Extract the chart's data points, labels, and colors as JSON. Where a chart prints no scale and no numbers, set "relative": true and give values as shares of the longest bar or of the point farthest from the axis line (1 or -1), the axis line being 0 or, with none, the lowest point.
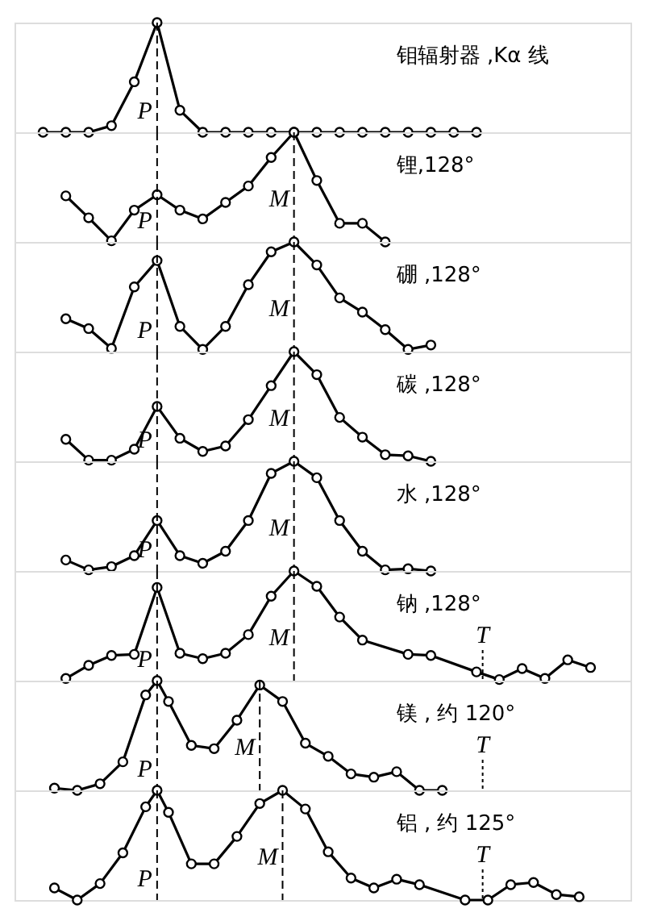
{
  "chart_data": [
    {
      "type": "line",
      "relative": true,
      "tick_labels": false,
      "marker": "circle",
      "line_style": "solid",
      "annotations": [
        "钼辐射器 ,Kα 线",
        "P"
      ],
      "categories": [
        null,
        null,
        null,
        null,
        null,
        null,
        null,
        null,
        null,
        null,
        null,
        null,
        null,
        null,
        null,
        null,
        null,
        null,
        null,
        null,
        null,
        null,
        null,
        null,
        null,
        null,
        null,
        null,
        null,
        null,
        null,
        null,
        null,
        null,
        null,
        null,
        null,
        null,
        null,
        null,
        null,
        null,
        null,
        null,
        null,
        null,
        null,
        null,
        null,
        null,
        null,
        null,
        null,
        null
      ],
      "series": [
        {
          "color": "#000000",
          "values": [
            null,
            null,
            0,
            null,
            0,
            null,
            0,
            null,
            0.06,
            null,
            0.46,
            null,
            1,
            null,
            0.2,
            null,
            0,
            null,
            0,
            null,
            0,
            null,
            0,
            null,
            0,
            null,
            0,
            null,
            0,
            null,
            0,
            null,
            0,
            null,
            0,
            null,
            0,
            null,
            0,
            null,
            0,
            null,
            null,
            null,
            null,
            null,
            null,
            null,
            null,
            null,
            null,
            null,
            null,
            null
          ]
        }
      ]
    },
    {
      "type": "line",
      "relative": true,
      "tick_labels": false,
      "marker": "circle",
      "line_style": "solid",
      "annotations": [
        "锂,128°",
        "P",
        "M"
      ],
      "categories": [
        null,
        null,
        null,
        null,
        null,
        null,
        null,
        null,
        null,
        null,
        null,
        null,
        null,
        null,
        null,
        null,
        null,
        null,
        null,
        null,
        null,
        null,
        null,
        null,
        null,
        null,
        null,
        null,
        null,
        null,
        null,
        null,
        null,
        null,
        null,
        null,
        null,
        null,
        null,
        null,
        null,
        null,
        null,
        null,
        null,
        null,
        null,
        null,
        null,
        null,
        null,
        null,
        null,
        null
      ],
      "series": [
        {
          "color": "#000000",
          "values": [
            null,
            null,
            null,
            null,
            0.42,
            null,
            0.22,
            null,
            0.01,
            null,
            0.29,
            null,
            0.43,
            null,
            0.29,
            null,
            0.21,
            null,
            0.36,
            null,
            0.51,
            null,
            0.77,
            null,
            1,
            null,
            0.56,
            null,
            0.17,
            null,
            0.17,
            null,
            0,
            null,
            null,
            null,
            null,
            null,
            null,
            null,
            null,
            null,
            null,
            null,
            null,
            null,
            null,
            null,
            null,
            null,
            null,
            null,
            null,
            null
          ]
        }
      ]
    },
    {
      "type": "line",
      "relative": true,
      "tick_labels": false,
      "marker": "circle",
      "line_style": "solid",
      "annotations": [
        "硼 ,128°",
        "P",
        "M"
      ],
      "categories": [
        null,
        null,
        null,
        null,
        null,
        null,
        null,
        null,
        null,
        null,
        null,
        null,
        null,
        null,
        null,
        null,
        null,
        null,
        null,
        null,
        null,
        null,
        null,
        null,
        null,
        null,
        null,
        null,
        null,
        null,
        null,
        null,
        null,
        null,
        null,
        null,
        null,
        null,
        null,
        null,
        null,
        null,
        null,
        null,
        null,
        null,
        null,
        null,
        null,
        null,
        null,
        null,
        null,
        null
      ],
      "series": [
        {
          "color": "#000000",
          "values": [
            null,
            null,
            null,
            null,
            0.3,
            null,
            0.21,
            null,
            0.03,
            null,
            0.59,
            null,
            0.83,
            null,
            0.23,
            null,
            0.02,
            null,
            0.23,
            null,
            0.61,
            null,
            0.91,
            null,
            1,
            null,
            0.79,
            null,
            0.49,
            null,
            0.36,
            null,
            0.2,
            null,
            0.02,
            null,
            0.06,
            null,
            null,
            null,
            null,
            null,
            null,
            null,
            null,
            null,
            null,
            null,
            null,
            null,
            null,
            null,
            null,
            null
          ]
        }
      ]
    },
    {
      "type": "line",
      "relative": true,
      "tick_labels": false,
      "marker": "circle",
      "line_style": "solid",
      "annotations": [
        "碳 ,128°",
        "P",
        "M"
      ],
      "categories": [
        null,
        null,
        null,
        null,
        null,
        null,
        null,
        null,
        null,
        null,
        null,
        null,
        null,
        null,
        null,
        null,
        null,
        null,
        null,
        null,
        null,
        null,
        null,
        null,
        null,
        null,
        null,
        null,
        null,
        null,
        null,
        null,
        null,
        null,
        null,
        null,
        null,
        null,
        null,
        null,
        null,
        null,
        null,
        null,
        null,
        null,
        null,
        null,
        null,
        null,
        null,
        null,
        null,
        null
      ],
      "series": [
        {
          "color": "#000000",
          "values": [
            null,
            null,
            null,
            null,
            0.2,
            null,
            0.01,
            null,
            0.01,
            null,
            0.11,
            null,
            0.5,
            null,
            0.21,
            null,
            0.09,
            null,
            0.14,
            null,
            0.38,
            null,
            0.69,
            null,
            1,
            null,
            0.79,
            null,
            0.4,
            null,
            0.22,
            null,
            0.06,
            null,
            0.05,
            null,
            0,
            null,
            null,
            null,
            null,
            null,
            null,
            null,
            null,
            null,
            null,
            null,
            null,
            null,
            null,
            null,
            null,
            null
          ]
        }
      ]
    },
    {
      "type": "line",
      "relative": true,
      "tick_labels": false,
      "marker": "circle",
      "line_style": "solid",
      "annotations": [
        "水 ,128°",
        "P",
        "M"
      ],
      "categories": [
        null,
        null,
        null,
        null,
        null,
        null,
        null,
        null,
        null,
        null,
        null,
        null,
        null,
        null,
        null,
        null,
        null,
        null,
        null,
        null,
        null,
        null,
        null,
        null,
        null,
        null,
        null,
        null,
        null,
        null,
        null,
        null,
        null,
        null,
        null,
        null,
        null,
        null,
        null,
        null,
        null,
        null,
        null,
        null,
        null,
        null,
        null,
        null,
        null,
        null,
        null,
        null,
        null,
        null
      ],
      "series": [
        {
          "color": "#000000",
          "values": [
            null,
            null,
            null,
            null,
            0.1,
            null,
            0.01,
            null,
            0.04,
            null,
            0.14,
            null,
            0.46,
            null,
            0.14,
            null,
            0.07,
            null,
            0.18,
            null,
            0.46,
            null,
            0.89,
            null,
            1,
            null,
            0.85,
            null,
            0.46,
            null,
            0.18,
            null,
            0.01,
            null,
            0.02,
            null,
            0,
            null,
            null,
            null,
            null,
            null,
            null,
            null,
            null,
            null,
            null,
            null,
            null,
            null,
            null,
            null,
            null,
            null
          ]
        }
      ]
    },
    {
      "type": "line",
      "relative": true,
      "tick_labels": false,
      "marker": "circle",
      "line_style": "solid",
      "annotations": [
        "钠 ,128°",
        "P",
        "M",
        "T"
      ],
      "categories": [
        null,
        null,
        null,
        null,
        null,
        null,
        null,
        null,
        null,
        null,
        null,
        null,
        null,
        null,
        null,
        null,
        null,
        null,
        null,
        null,
        null,
        null,
        null,
        null,
        null,
        null,
        null,
        null,
        null,
        null,
        null,
        null,
        null,
        null,
        null,
        null,
        null,
        null,
        null,
        null,
        null,
        null,
        null,
        null,
        null,
        null,
        null,
        null,
        null,
        null,
        null,
        null,
        null,
        null
      ],
      "series": [
        {
          "color": "#000000",
          "values": [
            null,
            null,
            null,
            null,
            0.02,
            null,
            0.14,
            null,
            0.23,
            null,
            0.24,
            null,
            0.85,
            null,
            0.25,
            null,
            0.2,
            null,
            0.25,
            null,
            0.42,
            null,
            0.77,
            null,
            1,
            null,
            0.86,
            null,
            0.58,
            null,
            0.37,
            null,
            null,
            null,
            0.24,
            null,
            0.23,
            null,
            null,
            null,
            0.08,
            null,
            0.01,
            null,
            0.11,
            null,
            0.02,
            null,
            0.19,
            null,
            0.12,
            null,
            null,
            null
          ]
        }
      ]
    },
    {
      "type": "line",
      "relative": true,
      "tick_labels": false,
      "marker": "circle",
      "line_style": "solid",
      "annotations": [
        "镁 , 约 120°",
        "P",
        "M",
        "T"
      ],
      "categories": [
        null,
        null,
        null,
        null,
        null,
        null,
        null,
        null,
        null,
        null,
        null,
        null,
        null,
        null,
        null,
        null,
        null,
        null,
        null,
        null,
        null,
        null,
        null,
        null,
        null,
        null,
        null,
        null,
        null,
        null,
        null,
        null,
        null,
        null,
        null,
        null,
        null,
        null,
        null,
        null,
        null,
        null,
        null,
        null,
        null,
        null,
        null,
        null,
        null,
        null,
        null,
        null,
        null,
        null
      ],
      "series": [
        {
          "color": "#000000",
          "values": [
            null,
            null,
            null,
            0.02,
            null,
            0,
            null,
            0.06,
            null,
            0.26,
            null,
            0.87,
            1,
            0.81,
            null,
            0.41,
            null,
            0.38,
            null,
            0.64,
            null,
            0.96,
            null,
            0.81,
            null,
            0.43,
            null,
            0.31,
            null,
            0.15,
            null,
            0.12,
            null,
            0.17,
            null,
            0,
            null,
            0,
            null,
            null,
            null,
            null,
            null,
            null,
            null,
            null,
            null,
            null,
            null,
            null,
            null,
            null,
            null,
            null
          ]
        }
      ]
    },
    {
      "type": "line",
      "relative": true,
      "tick_labels": false,
      "marker": "circle",
      "line_style": "solid",
      "annotations": [
        "铝 , 约 125°",
        "P",
        "M",
        "T"
      ],
      "categories": [
        null,
        null,
        null,
        null,
        null,
        null,
        null,
        null,
        null,
        null,
        null,
        null,
        null,
        null,
        null,
        null,
        null,
        null,
        null,
        null,
        null,
        null,
        null,
        null,
        null,
        null,
        null,
        null,
        null,
        null,
        null,
        null,
        null,
        null,
        null,
        null,
        null,
        null,
        null,
        null,
        null,
        null,
        null,
        null,
        null,
        null,
        null,
        null,
        null,
        null,
        null,
        null,
        null,
        null
      ],
      "series": [
        {
          "color": "#000000",
          "values": [
            null,
            null,
            null,
            0.11,
            null,
            0,
            null,
            0.15,
            null,
            0.43,
            null,
            0.85,
            1,
            0.8,
            null,
            0.33,
            null,
            0.33,
            null,
            0.58,
            null,
            0.88,
            null,
            1,
            null,
            0.83,
            null,
            0.44,
            null,
            0.2,
            null,
            0.11,
            null,
            0.19,
            null,
            0.14,
            null,
            null,
            null,
            0,
            null,
            0,
            null,
            0.14,
            null,
            0.16,
            null,
            0.05,
            null,
            0.03,
            null,
            null,
            null,
            null
          ]
        }
      ]
    }
  ]
}
